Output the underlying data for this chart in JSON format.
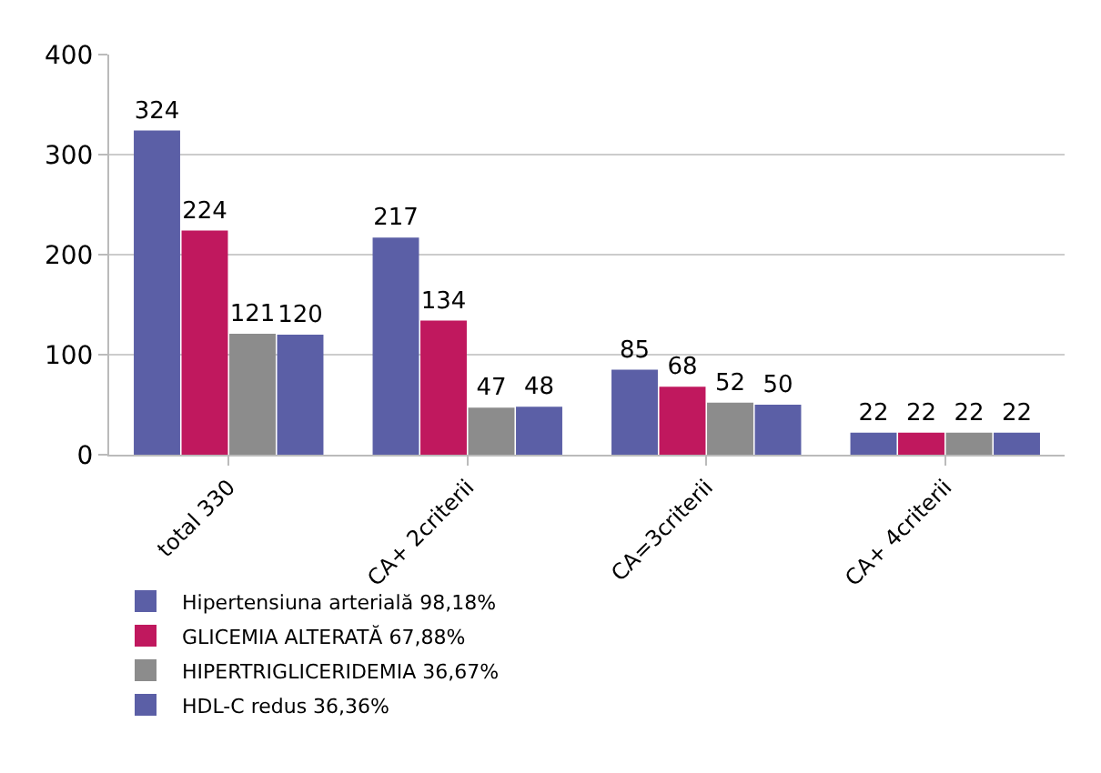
{
  "chart_data": {
    "type": "bar",
    "categories": [
      "total 330",
      "CA+ 2criterii",
      "CA=3criterii",
      "CA+ 4criterii"
    ],
    "series": [
      {
        "name": "Hipertensiuna arterială 98,18%",
        "color": "#5b5fa6",
        "values": [
          324,
          217,
          85,
          22
        ]
      },
      {
        "name": "GLICEMIA ALTERATĂ 67,88%",
        "color": "#c0185e",
        "values": [
          224,
          134,
          68,
          22
        ]
      },
      {
        "name": "HIPERTRIGLICERIDEMIA 36,67%",
        "color": "#8c8c8c",
        "values": [
          121,
          47,
          52,
          22
        ]
      },
      {
        "name": "HDL-C redus 36,36%",
        "color": "#5b5fa6",
        "values": [
          120,
          48,
          50,
          22
        ]
      }
    ],
    "ylim": [
      0,
      400
    ],
    "yticks": [
      0,
      100,
      200,
      300,
      400
    ],
    "grid": "y",
    "data_labels": true,
    "legend": "bottom left"
  }
}
